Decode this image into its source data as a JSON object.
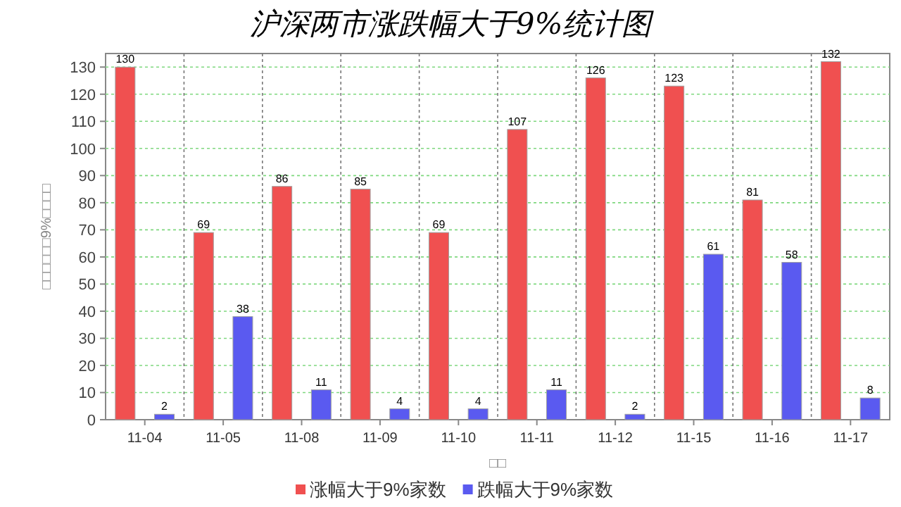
{
  "chart_data": {
    "type": "bar",
    "title": "沪深两市涨跌幅大于9%统计图",
    "xlabel": "□□",
    "ylabel": "□□□□□□9%□□□□",
    "categories": [
      "11-04",
      "11-05",
      "11-08",
      "11-09",
      "11-10",
      "11-11",
      "11-12",
      "11-15",
      "11-16",
      "11-17"
    ],
    "series": [
      {
        "name": "涨幅大于9%家数",
        "color": "#f05050",
        "values": [
          130,
          69,
          86,
          85,
          69,
          107,
          126,
          123,
          81,
          132
        ]
      },
      {
        "name": "跌幅大于9%家数",
        "color": "#5a5af0",
        "values": [
          2,
          38,
          11,
          4,
          4,
          11,
          2,
          61,
          58,
          8
        ]
      }
    ],
    "ylim": [
      0,
      135
    ],
    "yticks": [
      0,
      10,
      20,
      30,
      40,
      50,
      60,
      70,
      80,
      90,
      100,
      110,
      120,
      130
    ],
    "grid": true,
    "legend": "bottom",
    "data_labels": true
  }
}
